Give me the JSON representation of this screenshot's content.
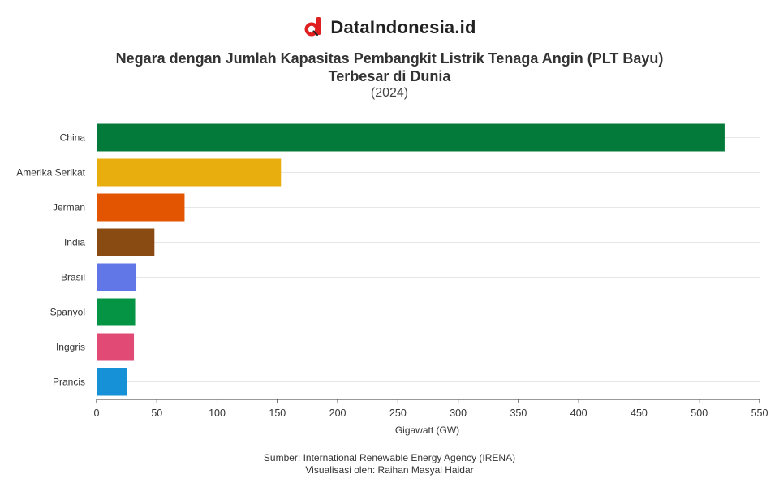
{
  "brand": {
    "name": "DataIndonesia.id",
    "logo_icon": "d-magnifier-logo-icon",
    "logo_color": "#e02020"
  },
  "header": {
    "title_line1": "Negara dengan Jumlah Kapasitas Pembangkit Listrik Tenaga Angin (PLT Bayu)",
    "title_line2": "Terbesar di Dunia",
    "subtitle": "(2024)"
  },
  "chart_data": {
    "type": "bar",
    "orientation": "horizontal",
    "categories": [
      "China",
      "Amerika Serikat",
      "Jerman",
      "India",
      "Brasil",
      "Spanyol",
      "Inggris",
      "Prancis"
    ],
    "values": [
      521,
      153,
      73,
      48,
      33,
      32,
      31,
      25
    ],
    "colors": [
      "#047a3a",
      "#e8ae0e",
      "#e35500",
      "#8a4b12",
      "#6177e8",
      "#049444",
      "#e04a74",
      "#1690d6"
    ],
    "xlabel": "Gigawatt (GW)",
    "xlim": [
      0,
      550
    ],
    "xticks": [
      0,
      50,
      100,
      150,
      200,
      250,
      300,
      350,
      400,
      450,
      500,
      550
    ],
    "grid": "horizontal"
  },
  "footer": {
    "source": "Sumber: International Renewable Energy Agency (IRENA)",
    "credit": "Visualisasi oleh: Raihan Masyal Haidar"
  }
}
